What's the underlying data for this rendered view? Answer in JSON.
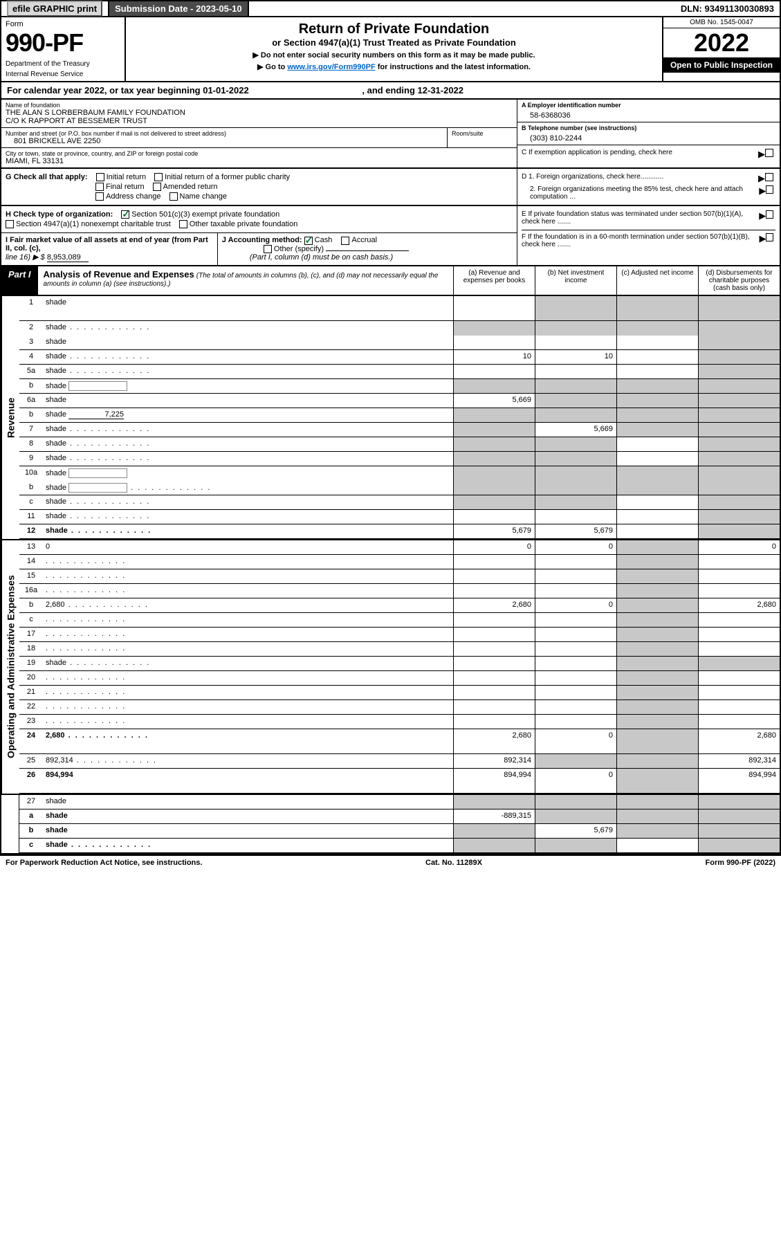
{
  "topbar": {
    "efile": "efile GRAPHIC print",
    "subdate_lbl": "Submission Date - ",
    "subdate": "2023-05-10",
    "dln_lbl": "DLN: ",
    "dln": "93491130030893"
  },
  "header": {
    "form_word": "Form",
    "form_no": "990-PF",
    "dept1": "Department of the Treasury",
    "dept2": "Internal Revenue Service",
    "title": "Return of Private Foundation",
    "subtitle": "or Section 4947(a)(1) Trust Treated as Private Foundation",
    "instr1": "▶ Do not enter social security numbers on this form as it may be made public.",
    "instr2_pre": "▶ Go to ",
    "instr2_link": "www.irs.gov/Form990PF",
    "instr2_post": " for instructions and the latest information.",
    "omb": "OMB No. 1545-0047",
    "year": "2022",
    "open": "Open to Public Inspection"
  },
  "calyear": {
    "text": "For calendar year 2022, or tax year beginning 01-01-2022",
    "mid": ", and ending 12-31-2022"
  },
  "info": {
    "name_lbl": "Name of foundation",
    "name1": "THE ALAN S LORBERBAUM FAMILY FOUNDATION",
    "name2": "C/O K RAPPORT AT BESSEMER TRUST",
    "addr_lbl": "Number and street (or P.O. box number if mail is not delivered to street address)",
    "addr": "801 BRICKELL AVE 2250",
    "room_lbl": "Room/suite",
    "city_lbl": "City or town, state or province, country, and ZIP or foreign postal code",
    "city": "MIAMI, FL  33131",
    "a_lbl": "A Employer identification number",
    "ein": "58-6368036",
    "b_lbl": "B Telephone number (see instructions)",
    "phone": "(303) 810-2244",
    "c_lbl": "C If exemption application is pending, check here",
    "d1": "D 1. Foreign organizations, check here............",
    "d2": "2. Foreign organizations meeting the 85% test, check here and attach computation ...",
    "e": "E  If private foundation status was terminated under section 507(b)(1)(A), check here .......",
    "f": "F  If the foundation is in a 60-month termination under section 507(b)(1)(B), check here .......",
    "g_lbl": "G Check all that apply:",
    "g_opts": [
      "Initial return",
      "Initial return of a former public charity",
      "Final return",
      "Amended return",
      "Address change",
      "Name change"
    ],
    "h_lbl": "H Check type of organization:",
    "h1": "Section 501(c)(3) exempt private foundation",
    "h2": "Section 4947(a)(1) nonexempt charitable trust",
    "h3": "Other taxable private foundation",
    "i_lbl": "I Fair market value of all assets at end of year (from Part II, col. (c),",
    "i_line": "line 16) ▶ $",
    "i_val": "8,953,089",
    "j_lbl": "J Accounting method:",
    "j_cash": "Cash",
    "j_accr": "Accrual",
    "j_other": "Other (specify)",
    "j_note": "(Part I, column (d) must be on cash basis.)"
  },
  "part1": {
    "label": "Part I",
    "title": "Analysis of Revenue and Expenses",
    "note": "(The total of amounts in columns (b), (c), and (d) may not necessarily equal the amounts in column (a) (see instructions).)",
    "cols": {
      "a": "(a)  Revenue and expenses per books",
      "b": "(b)  Net investment income",
      "c": "(c)  Adjusted net income",
      "d": "(d)  Disbursements for charitable purposes (cash basis only)"
    }
  },
  "sides": {
    "rev": "Revenue",
    "exp": "Operating and Administrative Expenses"
  },
  "rows": [
    {
      "n": "1",
      "d": "shade",
      "a": "",
      "b": "shade",
      "c": "shade",
      "tall": true
    },
    {
      "n": "2",
      "d": "shade",
      "a": "shade",
      "b": "shade",
      "c": "shade",
      "nb": true,
      "dots": true
    },
    {
      "n": "3",
      "d": "shade",
      "a": "",
      "b": "",
      "c": ""
    },
    {
      "n": "4",
      "d": "shade",
      "a": "10",
      "b": "10",
      "c": "",
      "dots": true
    },
    {
      "n": "5a",
      "d": "shade",
      "a": "",
      "b": "",
      "c": "",
      "dots": true
    },
    {
      "n": "b",
      "d": "shade",
      "a": "shade",
      "b": "shade",
      "c": "shade",
      "ghost": true
    },
    {
      "n": "6a",
      "d": "shade",
      "a": "5,669",
      "b": "shade",
      "c": "shade"
    },
    {
      "n": "b",
      "d": "shade",
      "a": "shade",
      "b": "shade",
      "c": "shade",
      "uval": "7,225"
    },
    {
      "n": "7",
      "d": "shade",
      "a": "shade",
      "b": "5,669",
      "c": "shade",
      "dots": true
    },
    {
      "n": "8",
      "d": "shade",
      "a": "shade",
      "b": "shade",
      "c": "",
      "dots": true
    },
    {
      "n": "9",
      "d": "shade",
      "a": "shade",
      "b": "shade",
      "c": "",
      "dots": true
    },
    {
      "n": "10a",
      "d": "shade",
      "a": "shade",
      "b": "shade",
      "c": "shade",
      "ghost": true,
      "nb": true
    },
    {
      "n": "b",
      "d": "shade",
      "a": "shade",
      "b": "shade",
      "c": "shade",
      "ghost": true,
      "dots": true
    },
    {
      "n": "c",
      "d": "shade",
      "a": "shade",
      "b": "shade",
      "c": "",
      "dots": true
    },
    {
      "n": "11",
      "d": "shade",
      "a": "",
      "b": "",
      "c": "",
      "dots": true
    },
    {
      "n": "12",
      "d": "shade",
      "a": "5,679",
      "b": "5,679",
      "c": "",
      "bold": true,
      "dots": true
    }
  ],
  "exp_rows": [
    {
      "n": "13",
      "d": "0",
      "a": "0",
      "b": "0",
      "c": "shade"
    },
    {
      "n": "14",
      "d": "",
      "a": "",
      "b": "",
      "c": "shade",
      "dots": true
    },
    {
      "n": "15",
      "d": "",
      "a": "",
      "b": "",
      "c": "shade",
      "dots": true
    },
    {
      "n": "16a",
      "d": "",
      "a": "",
      "b": "",
      "c": "shade",
      "dots": true
    },
    {
      "n": "b",
      "d": "2,680",
      "a": "2,680",
      "b": "0",
      "c": "shade",
      "dots": true
    },
    {
      "n": "c",
      "d": "",
      "a": "",
      "b": "",
      "c": "shade",
      "dots": true
    },
    {
      "n": "17",
      "d": "",
      "a": "",
      "b": "",
      "c": "shade",
      "dots": true
    },
    {
      "n": "18",
      "d": "",
      "a": "",
      "b": "",
      "c": "shade",
      "dots": true
    },
    {
      "n": "19",
      "d": "shade",
      "a": "",
      "b": "",
      "c": "shade",
      "dots": true
    },
    {
      "n": "20",
      "d": "",
      "a": "",
      "b": "",
      "c": "shade",
      "dots": true
    },
    {
      "n": "21",
      "d": "",
      "a": "",
      "b": "",
      "c": "shade",
      "dots": true
    },
    {
      "n": "22",
      "d": "",
      "a": "",
      "b": "",
      "c": "shade",
      "dots": true
    },
    {
      "n": "23",
      "d": "",
      "a": "",
      "b": "",
      "c": "shade",
      "dots": true
    },
    {
      "n": "24",
      "d": "2,680",
      "a": "2,680",
      "b": "0",
      "c": "shade",
      "bold": true,
      "dots": true,
      "tall": true
    },
    {
      "n": "25",
      "d": "892,314",
      "a": "892,314",
      "b": "shade",
      "c": "shade",
      "dots": true
    },
    {
      "n": "26",
      "d": "894,994",
      "a": "894,994",
      "b": "0",
      "c": "shade",
      "bold": true,
      "tall": true
    }
  ],
  "bottom_rows": [
    {
      "n": "27",
      "d": "shade",
      "a": "shade",
      "b": "shade",
      "c": "shade"
    },
    {
      "n": "a",
      "d": "shade",
      "a": "-889,315",
      "b": "shade",
      "c": "shade",
      "bold": true
    },
    {
      "n": "b",
      "d": "shade",
      "a": "shade",
      "b": "5,679",
      "c": "shade",
      "bold": true
    },
    {
      "n": "c",
      "d": "shade",
      "a": "shade",
      "b": "shade",
      "c": "",
      "bold": true,
      "dots": true
    }
  ],
  "footer": {
    "left": "For Paperwork Reduction Act Notice, see instructions.",
    "mid": "Cat. No. 11289X",
    "right": "Form 990-PF (2022)"
  }
}
